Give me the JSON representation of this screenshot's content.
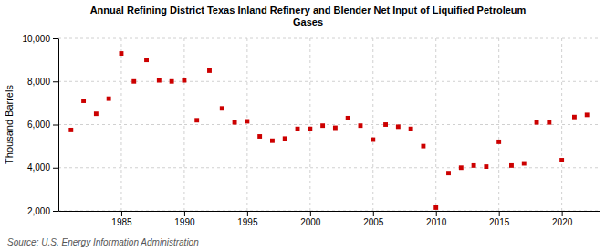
{
  "chart_data": {
    "type": "scatter",
    "title": "Annual Refining District Texas Inland Refinery and Blender Net Input of Liquified Petroleum\nGases",
    "ylabel": "Thousand Barrels",
    "annotations": [
      "Source: U.S. Energy Information Administration"
    ],
    "color": "#cc0000",
    "marker": "square",
    "grid": true,
    "x": [
      1981,
      1982,
      1983,
      1984,
      1985,
      1986,
      1987,
      1988,
      1989,
      1990,
      1991,
      1992,
      1993,
      1994,
      1995,
      1996,
      1997,
      1998,
      1999,
      2000,
      2001,
      2002,
      2003,
      2004,
      2005,
      2006,
      2007,
      2008,
      2009,
      2010,
      2011,
      2012,
      2013,
      2014,
      2015,
      2016,
      2017,
      2018,
      2019,
      2020,
      2021,
      2022
    ],
    "values": [
      5750,
      7100,
      6500,
      7200,
      9300,
      8000,
      9000,
      8050,
      8000,
      8050,
      6200,
      8500,
      6750,
      6100,
      6150,
      5450,
      5250,
      5350,
      5800,
      5800,
      5950,
      5850,
      6300,
      5950,
      5300,
      6000,
      5900,
      5800,
      5000,
      2150,
      3750,
      4000,
      4100,
      4050,
      5200,
      4100,
      4200,
      6100,
      6100,
      4350,
      6350,
      6450
    ],
    "xlim": [
      1980,
      2023
    ],
    "xticks": [
      1985,
      1990,
      1995,
      2000,
      2005,
      2010,
      2015,
      2020
    ],
    "ylim": [
      2000,
      10000
    ],
    "yticks": [
      {
        "value": 2000,
        "label": "2,000"
      },
      {
        "value": 4000,
        "label": "4,000"
      },
      {
        "value": 6000,
        "label": "6,000"
      },
      {
        "value": 8000,
        "label": "8,000"
      },
      {
        "value": 10000,
        "label": "10,000"
      }
    ]
  }
}
